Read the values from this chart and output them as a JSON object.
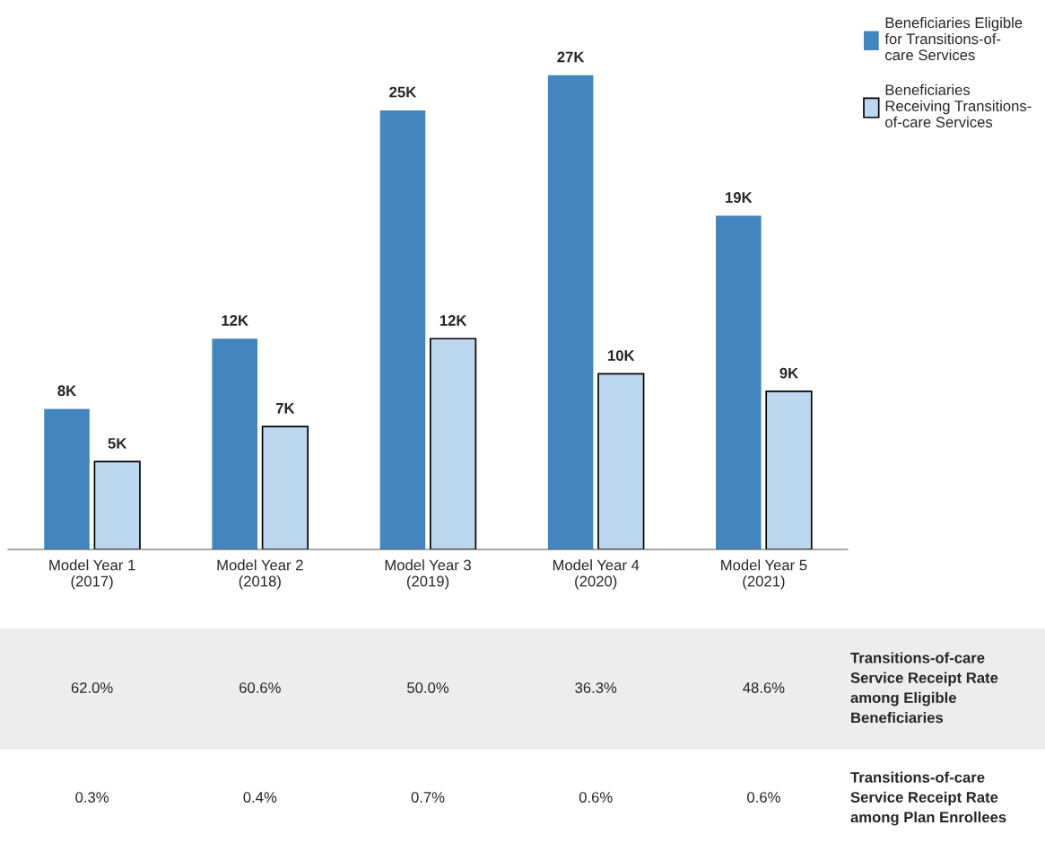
{
  "chart_data": {
    "type": "bar",
    "categories": [
      "Model Year 1\n(2017)",
      "Model Year 2\n(2018)",
      "Model Year 3\n(2019)",
      "Model Year 4\n(2020)",
      "Model Year 5\n(2021)"
    ],
    "series": [
      {
        "name": "Beneficiaries Eligible\nfor Transitions-of-\ncare Services",
        "color": "#4285bf",
        "values": [
          8,
          12,
          25,
          27,
          19
        ],
        "value_labels": [
          "8K",
          "12K",
          "25K",
          "27K",
          "19K"
        ]
      },
      {
        "name": "Beneficiaries\nReceiving Transitions-\nof-care Services",
        "color": "#bdd7ee",
        "values": [
          5,
          7,
          12,
          10,
          9
        ],
        "value_labels": [
          "5K",
          "7K",
          "12K",
          "10K",
          "9K"
        ]
      }
    ],
    "legend": "top right",
    "grid": false,
    "annotations": [
      "Transitions-of-care\nService Receipt Rate\namong Eligible\nBeneficiaries",
      "62.0%",
      "60.6%",
      "50.0%",
      "36.3%",
      "48.6%",
      "Transitions-of-care\nService Receipt Rate\namong Plan Enrollees",
      "0.3%",
      "0.4%",
      "0.7%",
      "0.6%",
      "0.6%"
    ]
  }
}
